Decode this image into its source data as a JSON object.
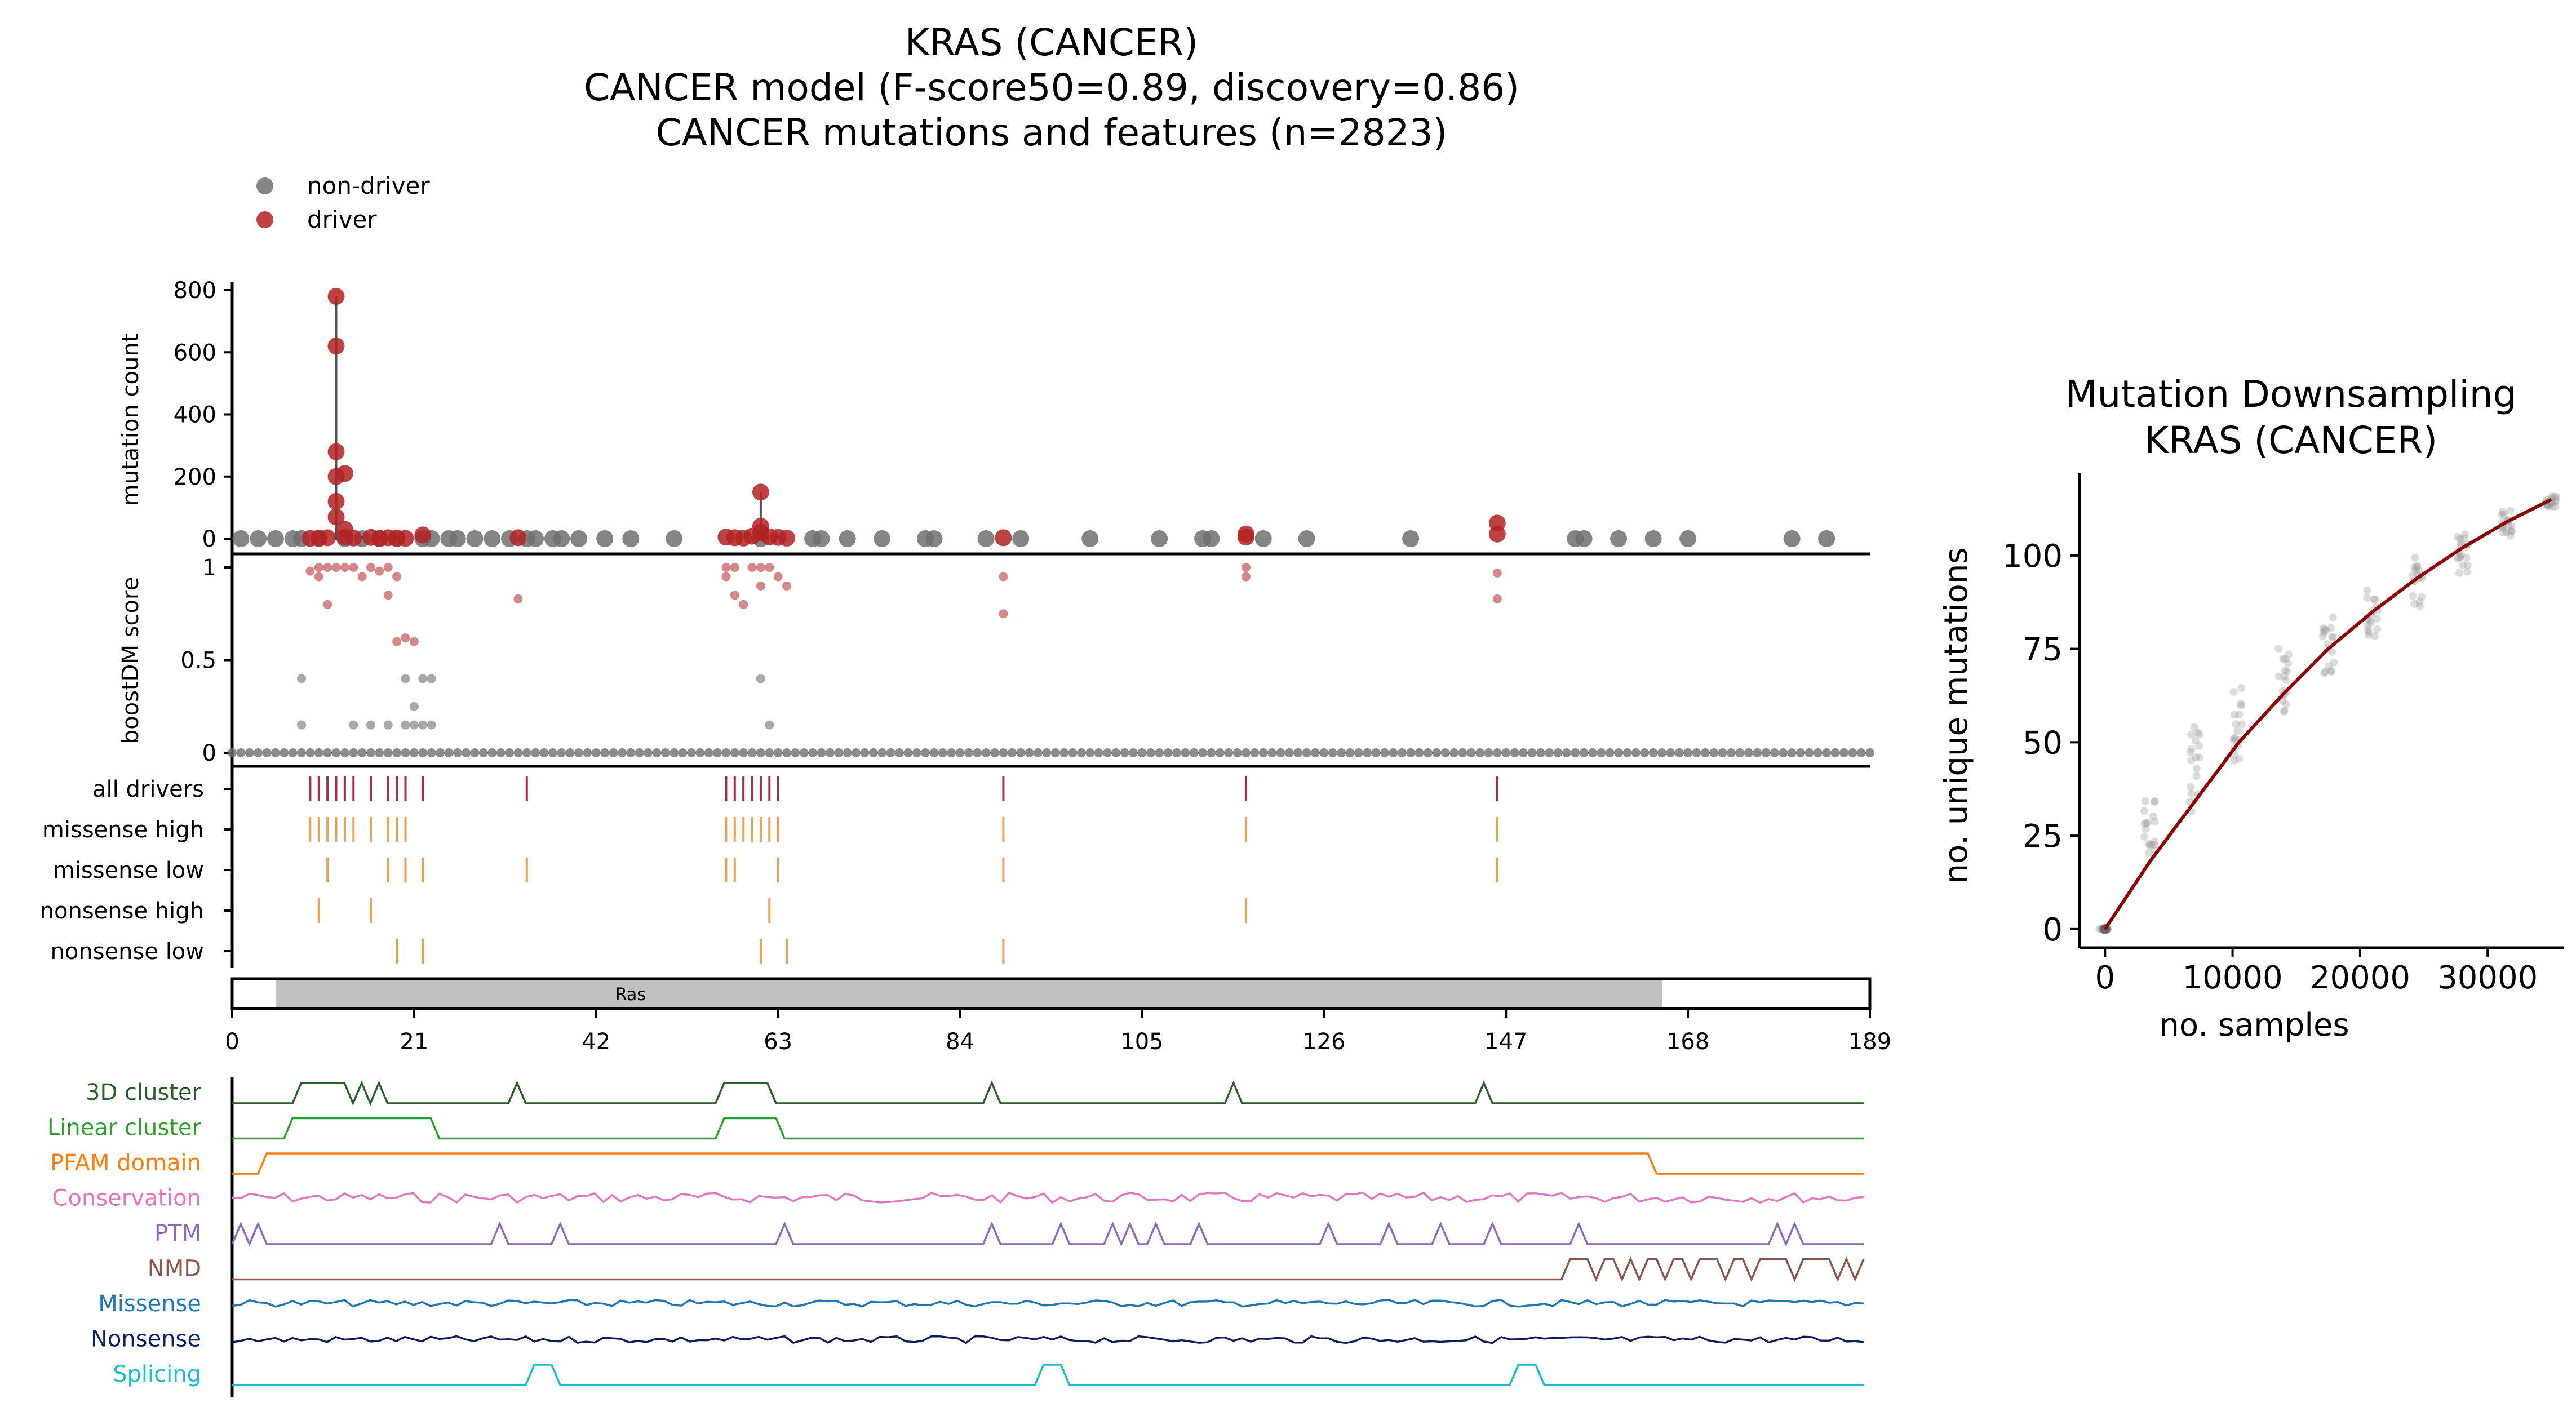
{
  "main_title_lines": [
    "KRAS (CANCER)",
    "CANCER model (F-score50=0.89, discovery=0.86)",
    "CANCER mutations and features (n=2823)"
  ],
  "legend": [
    {
      "label": "non-driver",
      "color": "#6e6e6e"
    },
    {
      "label": "driver",
      "color": "#b22222"
    }
  ],
  "colors": {
    "driver": "#b22222",
    "non_driver": "#6e6e6e",
    "all_drivers_tick": "#a0334a",
    "consequence_tick": "#e8a05a",
    "domain_fill": "#c0c0c0",
    "curve": "#8b0000"
  },
  "chart_data": [
    {
      "type": "scatter",
      "panel": "mutation-count",
      "ylabel": "mutation count",
      "ylim": [
        0,
        800
      ],
      "yticks": [
        0,
        200,
        400,
        600,
        800
      ],
      "xlim": [
        0,
        189
      ],
      "non_driver_positions": [
        1,
        3,
        5,
        7,
        8,
        10,
        13,
        15,
        17,
        19,
        22,
        23,
        25,
        26,
        28,
        30,
        32,
        34,
        35,
        37,
        38,
        40,
        43,
        46,
        51,
        61,
        67,
        68,
        71,
        75,
        80,
        81,
        87,
        91,
        99,
        107,
        112,
        113,
        119,
        124,
        136,
        155,
        156,
        160,
        164,
        168,
        180,
        184
      ],
      "driver_points": [
        {
          "x": 9,
          "y": 1
        },
        {
          "x": 10,
          "y": 2
        },
        {
          "x": 11,
          "y": 3
        },
        {
          "x": 12,
          "y": 780
        },
        {
          "x": 12,
          "y": 620
        },
        {
          "x": 12,
          "y": 280
        },
        {
          "x": 12,
          "y": 200
        },
        {
          "x": 13,
          "y": 210
        },
        {
          "x": 12,
          "y": 120
        },
        {
          "x": 12,
          "y": 70
        },
        {
          "x": 13,
          "y": 30
        },
        {
          "x": 13,
          "y": 5
        },
        {
          "x": 14,
          "y": 2
        },
        {
          "x": 16,
          "y": 4
        },
        {
          "x": 17,
          "y": 1
        },
        {
          "x": 18,
          "y": 3
        },
        {
          "x": 19,
          "y": 2
        },
        {
          "x": 20,
          "y": 1
        },
        {
          "x": 22,
          "y": 12
        },
        {
          "x": 33,
          "y": 3
        },
        {
          "x": 57,
          "y": 5
        },
        {
          "x": 58,
          "y": 3
        },
        {
          "x": 59,
          "y": 2
        },
        {
          "x": 60,
          "y": 8
        },
        {
          "x": 61,
          "y": 150
        },
        {
          "x": 61,
          "y": 40
        },
        {
          "x": 61,
          "y": 20
        },
        {
          "x": 62,
          "y": 6
        },
        {
          "x": 63,
          "y": 4
        },
        {
          "x": 64,
          "y": 2
        },
        {
          "x": 89,
          "y": 3
        },
        {
          "x": 117,
          "y": 15
        },
        {
          "x": 117,
          "y": 5
        },
        {
          "x": 146,
          "y": 50
        },
        {
          "x": 146,
          "y": 15
        }
      ],
      "stems": [
        {
          "x": 12,
          "y": 780
        },
        {
          "x": 61,
          "y": 150
        }
      ]
    },
    {
      "type": "scatter",
      "panel": "boostDM-score",
      "ylabel": "boostDM score",
      "ylim": [
        0,
        1
      ],
      "yticks": [
        0,
        0.5,
        1
      ],
      "xlim": [
        0,
        189
      ],
      "driver_points": [
        {
          "x": 9,
          "y": 0.98
        },
        {
          "x": 10,
          "y": 1
        },
        {
          "x": 10,
          "y": 0.95
        },
        {
          "x": 11,
          "y": 1
        },
        {
          "x": 11,
          "y": 0.8
        },
        {
          "x": 12,
          "y": 1
        },
        {
          "x": 13,
          "y": 1
        },
        {
          "x": 14,
          "y": 1
        },
        {
          "x": 15,
          "y": 0.95
        },
        {
          "x": 16,
          "y": 1
        },
        {
          "x": 17,
          "y": 0.98
        },
        {
          "x": 18,
          "y": 1
        },
        {
          "x": 18,
          "y": 0.85
        },
        {
          "x": 19,
          "y": 0.95
        },
        {
          "x": 19,
          "y": 0.6
        },
        {
          "x": 20,
          "y": 0.62
        },
        {
          "x": 21,
          "y": 0.6
        },
        {
          "x": 33,
          "y": 0.83
        },
        {
          "x": 57,
          "y": 1
        },
        {
          "x": 57,
          "y": 0.95
        },
        {
          "x": 58,
          "y": 1
        },
        {
          "x": 58,
          "y": 0.85
        },
        {
          "x": 59,
          "y": 0.8
        },
        {
          "x": 60,
          "y": 1
        },
        {
          "x": 61,
          "y": 1
        },
        {
          "x": 61,
          "y": 0.9
        },
        {
          "x": 62,
          "y": 1
        },
        {
          "x": 63,
          "y": 0.95
        },
        {
          "x": 64,
          "y": 0.9
        },
        {
          "x": 89,
          "y": 0.95
        },
        {
          "x": 89,
          "y": 0.75
        },
        {
          "x": 117,
          "y": 1
        },
        {
          "x": 117,
          "y": 0.95
        },
        {
          "x": 146,
          "y": 0.97
        },
        {
          "x": 146,
          "y": 0.83
        }
      ],
      "non_driver_points": [
        {
          "x": 8,
          "y": 0.4
        },
        {
          "x": 8,
          "y": 0.15
        },
        {
          "x": 14,
          "y": 0.15
        },
        {
          "x": 16,
          "y": 0.15
        },
        {
          "x": 18,
          "y": 0.15
        },
        {
          "x": 20,
          "y": 0.4
        },
        {
          "x": 20,
          "y": 0.15
        },
        {
          "x": 21,
          "y": 0.25
        },
        {
          "x": 21,
          "y": 0.15
        },
        {
          "x": 22,
          "y": 0.4
        },
        {
          "x": 22,
          "y": 0.15
        },
        {
          "x": 23,
          "y": 0.4
        },
        {
          "x": 23,
          "y": 0.15
        },
        {
          "x": 61,
          "y": 0.4
        },
        {
          "x": 62,
          "y": 0.15
        }
      ],
      "baseline_points_every": 1
    },
    {
      "type": "table",
      "panel": "consequence-ticks",
      "rows": [
        {
          "label": "all drivers",
          "positions": [
            9,
            10,
            11,
            12,
            13,
            14,
            16,
            18,
            19,
            20,
            22,
            34,
            57,
            58,
            59,
            60,
            61,
            62,
            63,
            89,
            117,
            146
          ]
        },
        {
          "label": "missense high",
          "positions": [
            9,
            10,
            11,
            12,
            13,
            14,
            16,
            18,
            19,
            20,
            57,
            58,
            59,
            60,
            61,
            62,
            63,
            89,
            117,
            146
          ]
        },
        {
          "label": "missense low",
          "positions": [
            11,
            18,
            20,
            22,
            34,
            57,
            58,
            63,
            89,
            146
          ]
        },
        {
          "label": "nonsense high",
          "positions": [
            10,
            16,
            62,
            117
          ]
        },
        {
          "label": "nonsense low",
          "positions": [
            19,
            22,
            61,
            64,
            89
          ]
        }
      ]
    },
    {
      "type": "bar",
      "panel": "domain",
      "domains": [
        {
          "name": "Ras",
          "start": 5,
          "end": 165
        }
      ],
      "xlim": [
        0,
        189
      ],
      "xticks": [
        0,
        21,
        42,
        63,
        84,
        105,
        126,
        147,
        168,
        189
      ]
    },
    {
      "type": "line",
      "panel": "features",
      "series": [
        {
          "name": "3D cluster",
          "color": "#2a5e2a"
        },
        {
          "name": "Linear cluster",
          "color": "#2ca02c"
        },
        {
          "name": "PFAM domain",
          "color": "#ff7f0e"
        },
        {
          "name": "Conservation",
          "color": "#e377c2"
        },
        {
          "name": "PTM",
          "color": "#9467bd"
        },
        {
          "name": "NMD",
          "color": "#8c564b"
        },
        {
          "name": "Missense",
          "color": "#1f77b4"
        },
        {
          "name": "Nonsense",
          "color": "#0b1f5e"
        },
        {
          "name": "Splicing",
          "color": "#17becf"
        }
      ]
    },
    {
      "type": "scatter",
      "panel": "downsampling",
      "title_lines": [
        "Mutation Downsampling",
        "KRAS (CANCER)"
      ],
      "xlabel": "no. samples",
      "ylabel": "no. unique mutations",
      "xlim": [
        -2000,
        36000
      ],
      "ylim": [
        -5,
        122
      ],
      "xticks": [
        0,
        10000,
        20000,
        30000
      ],
      "yticks": [
        0,
        25,
        50,
        75,
        100
      ],
      "sample_sizes": [
        0,
        3500,
        7000,
        10500,
        14000,
        17500,
        21000,
        24500,
        28000,
        31500,
        35000
      ],
      "curve": [
        [
          0,
          0
        ],
        [
          3500,
          18
        ],
        [
          7000,
          34
        ],
        [
          10500,
          50
        ],
        [
          14000,
          63
        ],
        [
          17500,
          75
        ],
        [
          21000,
          85
        ],
        [
          24500,
          94
        ],
        [
          28000,
          102
        ],
        [
          31500,
          109
        ],
        [
          35000,
          115
        ]
      ],
      "point_spread": [
        [
          0,
          0,
          0
        ],
        [
          3500,
          20,
          35
        ],
        [
          7000,
          30,
          55
        ],
        [
          10500,
          45,
          65
        ],
        [
          14000,
          58,
          75
        ],
        [
          17500,
          68,
          85
        ],
        [
          21000,
          78,
          92
        ],
        [
          24500,
          86,
          100
        ],
        [
          28000,
          95,
          106
        ],
        [
          31500,
          105,
          112
        ],
        [
          35000,
          113,
          116
        ]
      ]
    }
  ]
}
